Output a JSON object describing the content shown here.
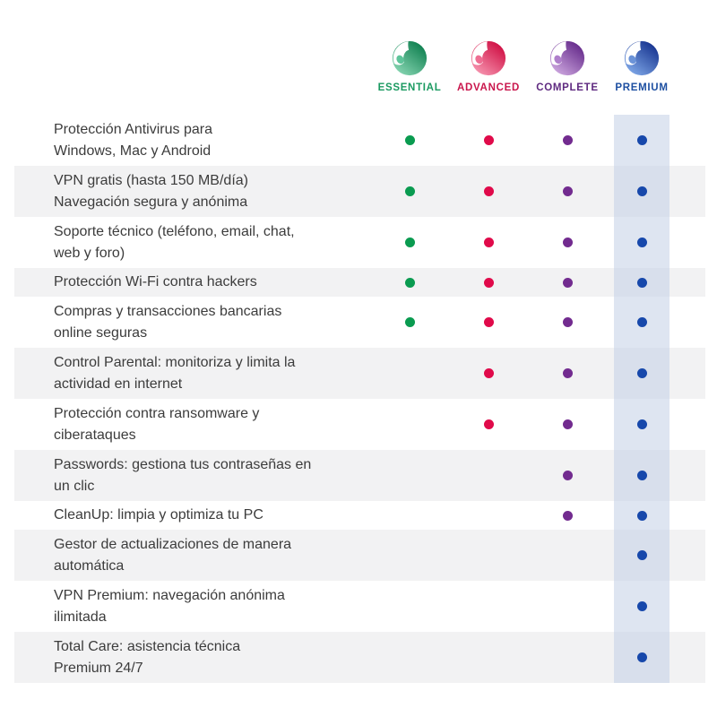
{
  "header": {
    "plans": [
      {
        "id": "essential",
        "label": "ESSENTIAL",
        "icon": "panda-logo",
        "label_color": "#1b9a61",
        "dot_color": "#0a9b50",
        "gradient_dark": "#0e7f4f",
        "gradient_light": "#82d2ae",
        "petal_color": "#5ec49a"
      },
      {
        "id": "advanced",
        "label": "ADVANCED",
        "icon": "panda-logo",
        "label_color": "#c9164c",
        "dot_color": "#e00a4a",
        "gradient_dark": "#cf0d42",
        "gradient_light": "#f590ac",
        "petal_color": "#ee6d92"
      },
      {
        "id": "complete",
        "label": "COMPLETE",
        "icon": "panda-logo",
        "label_color": "#5f2a80",
        "dot_color": "#722b8f",
        "gradient_dark": "#64298a",
        "gradient_light": "#c9a2dc",
        "petal_color": "#af7fcb"
      },
      {
        "id": "premium",
        "label": "PREMIUM",
        "icon": "panda-logo",
        "label_color": "#1d4fa1",
        "dot_color": "#1748ab",
        "gradient_dark": "#16338f",
        "gradient_light": "#7ba3e4",
        "petal_color": "#6b93d8"
      }
    ]
  },
  "features": [
    {
      "lines": [
        "Protección Antivirus para",
        "Windows, Mac y Android"
      ],
      "included": [
        "essential",
        "advanced",
        "complete",
        "premium"
      ]
    },
    {
      "lines": [
        "VPN gratis (hasta 150 MB/día)",
        "Navegación segura y anónima"
      ],
      "included": [
        "essential",
        "advanced",
        "complete",
        "premium"
      ]
    },
    {
      "lines": [
        "Soporte técnico (teléfono, email, chat,",
        "web y foro)"
      ],
      "included": [
        "essential",
        "advanced",
        "complete",
        "premium"
      ]
    },
    {
      "lines": [
        "Protección Wi-Fi contra hackers"
      ],
      "included": [
        "essential",
        "advanced",
        "complete",
        "premium"
      ]
    },
    {
      "lines": [
        "Compras y transacciones bancarias",
        "online seguras"
      ],
      "included": [
        "essential",
        "advanced",
        "complete",
        "premium"
      ]
    },
    {
      "lines": [
        "Control Parental: monitoriza y limita la",
        "actividad en internet"
      ],
      "included": [
        "advanced",
        "complete",
        "premium"
      ]
    },
    {
      "lines": [
        "Protección contra ransomware y",
        "ciberataques"
      ],
      "included": [
        "advanced",
        "complete",
        "premium"
      ]
    },
    {
      "lines": [
        "Passwords: gestiona tus contraseñas en",
        "un clic"
      ],
      "included": [
        "complete",
        "premium"
      ]
    },
    {
      "lines": [
        "CleanUp: limpia y optimiza tu PC"
      ],
      "included": [
        "complete",
        "premium"
      ]
    },
    {
      "lines": [
        "Gestor de actualizaciones de manera",
        "automática"
      ],
      "included": [
        "premium"
      ]
    },
    {
      "lines": [
        "VPN Premium: navegación anónima",
        "ilimitada"
      ],
      "included": [
        "premium"
      ]
    },
    {
      "lines": [
        "Total Care: asistencia técnica",
        "Premium 24/7"
      ],
      "included": [
        "premium"
      ]
    }
  ],
  "colors": {
    "row_alt_bg": "#f2f2f3",
    "premium_band": "rgba(195,208,230,0.55)",
    "text": "#3c3c3c",
    "background": "#ffffff"
  }
}
